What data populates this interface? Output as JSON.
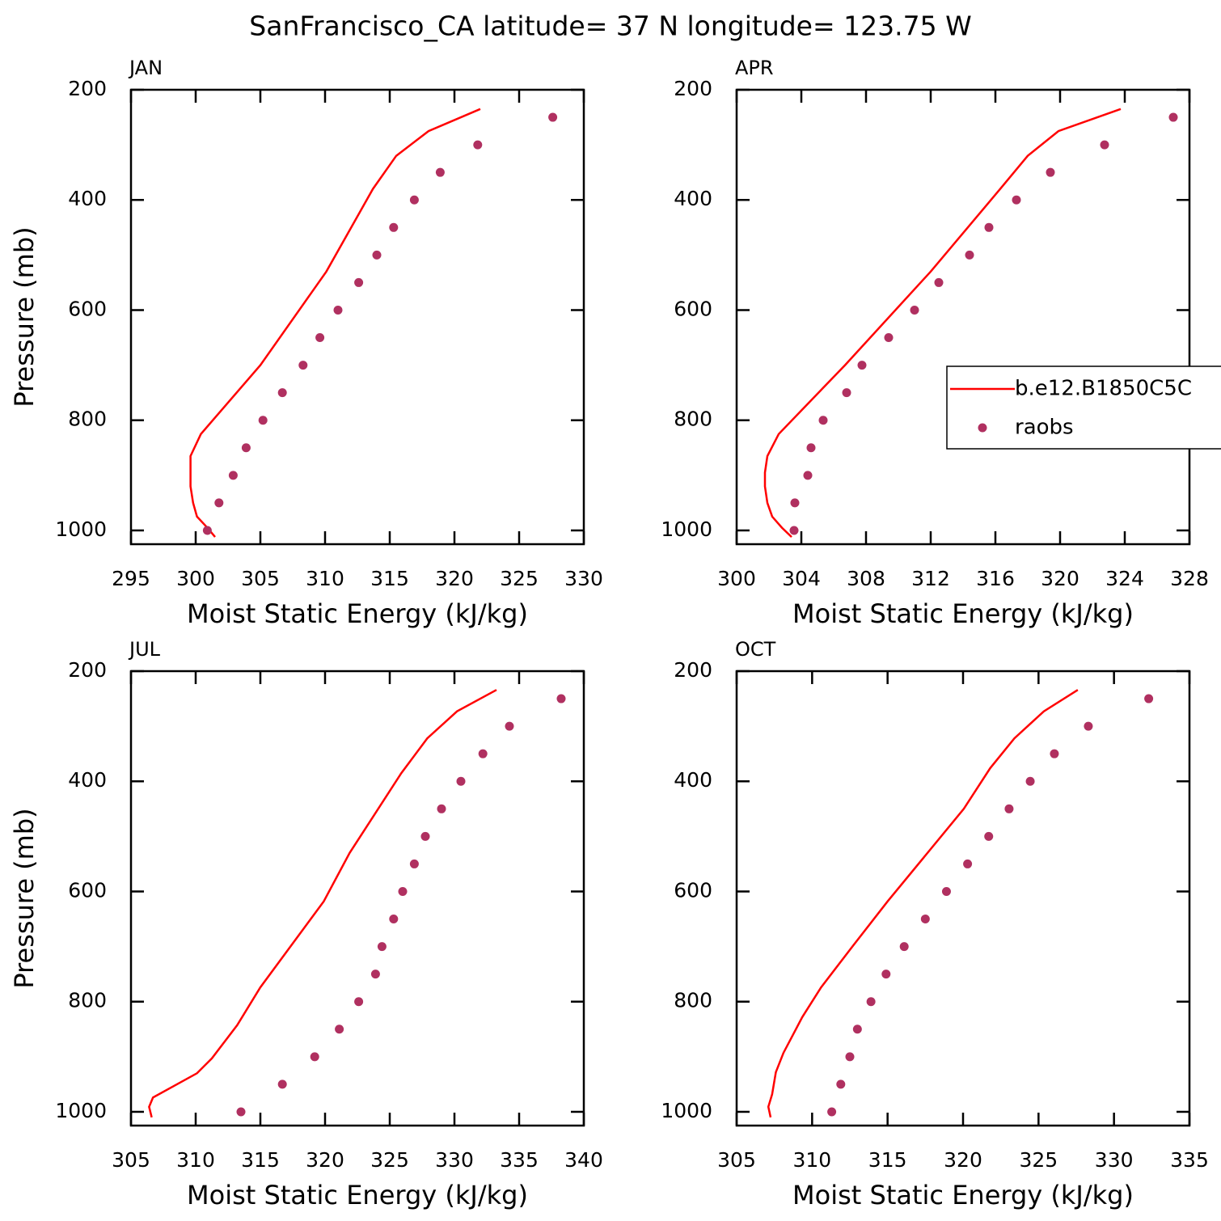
{
  "title": "SanFrancisco_CA  latitude= 37 N longitude= 123.75 W",
  "chart_data": [
    {
      "type": "line",
      "title": "JAN",
      "xlabel": "Moist Static Energy (kJ/kg)",
      "ylabel": "Pressure (mb)",
      "xlim": [
        295,
        330
      ],
      "xticks": [
        295,
        300,
        305,
        310,
        315,
        320,
        325,
        330
      ],
      "ylim": [
        1025,
        200
      ],
      "yticks": [
        200,
        400,
        600,
        800,
        1000
      ],
      "series": [
        {
          "color": "#ff0000",
          "style": "line",
          "x": [
            301.5,
            300.9,
            300.1,
            299.8,
            299.6,
            299.6,
            299.6,
            300.4,
            305.0,
            310.1,
            313.7,
            315.5,
            318.0,
            322.0
          ],
          "y": [
            1012,
            995,
            975,
            950,
            920,
            895,
            865,
            825,
            700,
            530,
            380,
            320,
            275,
            235
          ]
        },
        {
          "color": "#b03060",
          "style": "markers",
          "x": [
            300.9,
            301.8,
            302.9,
            303.9,
            305.2,
            306.7,
            308.3,
            309.6,
            311.0,
            312.6,
            314.0,
            315.3,
            316.9,
            318.9,
            321.8,
            327.6
          ],
          "y": [
            1000,
            950,
            900,
            850,
            800,
            750,
            700,
            650,
            600,
            550,
            500,
            450,
            400,
            350,
            300,
            250
          ]
        }
      ]
    },
    {
      "type": "line",
      "title": "APR",
      "xlabel": "Moist Static Energy (kJ/kg)",
      "xlim": [
        300,
        328
      ],
      "xticks": [
        300,
        304,
        308,
        312,
        316,
        320,
        324,
        328
      ],
      "ylim": [
        1025,
        200
      ],
      "yticks": [
        200,
        400,
        600,
        800,
        1000
      ],
      "legend": "right",
      "series": [
        {
          "name": "b.e12.B1850C5C",
          "color": "#ff0000",
          "style": "line",
          "x": [
            303.4,
            302.8,
            302.2,
            301.9,
            301.75,
            301.75,
            301.9,
            302.6,
            306.7,
            312.0,
            316.3,
            318.0,
            319.9,
            323.75
          ],
          "y": [
            1012,
            995,
            975,
            950,
            920,
            895,
            865,
            825,
            700,
            530,
            380,
            320,
            275,
            235
          ]
        },
        {
          "name": "raobs",
          "color": "#b03060",
          "style": "markers",
          "x": [
            303.55,
            303.6,
            304.4,
            304.6,
            305.35,
            306.8,
            307.75,
            309.4,
            311.0,
            312.5,
            314.4,
            315.6,
            317.3,
            319.4,
            322.75,
            327.0
          ],
          "y": [
            1000,
            950,
            900,
            850,
            800,
            750,
            700,
            650,
            600,
            550,
            500,
            450,
            400,
            350,
            300,
            250
          ]
        }
      ]
    },
    {
      "type": "line",
      "title": "JUL",
      "xlabel": "Moist Static Energy (kJ/kg)",
      "ylabel": "Pressure (mb)",
      "xlim": [
        305,
        340
      ],
      "xticks": [
        305,
        310,
        315,
        320,
        325,
        330,
        335,
        340
      ],
      "ylim": [
        1025,
        200
      ],
      "yticks": [
        200,
        400,
        600,
        800,
        1000
      ],
      "series": [
        {
          "color": "#ff0000",
          "style": "line",
          "x": [
            306.6,
            306.4,
            306.7,
            310.1,
            311.25,
            313.2,
            315.0,
            319.9,
            321.9,
            325.9,
            327.9,
            330.2,
            333.25
          ],
          "y": [
            1010,
            991,
            974,
            930,
            903,
            843,
            774,
            618,
            530,
            385,
            322,
            273,
            234
          ]
        },
        {
          "color": "#b03060",
          "style": "markers",
          "x": [
            313.5,
            316.7,
            319.2,
            321.1,
            322.6,
            323.9,
            324.4,
            325.3,
            326.0,
            326.9,
            327.75,
            329.0,
            330.5,
            332.2,
            334.25,
            338.25
          ],
          "y": [
            1000,
            950,
            900,
            850,
            800,
            750,
            700,
            650,
            600,
            550,
            500,
            450,
            400,
            350,
            300,
            250
          ]
        }
      ]
    },
    {
      "type": "line",
      "title": "OCT",
      "xlabel": "Moist Static Energy (kJ/kg)",
      "xlim": [
        305,
        335
      ],
      "xticks": [
        305,
        310,
        315,
        320,
        325,
        330,
        335
      ],
      "ylim": [
        1025,
        200
      ],
      "yticks": [
        200,
        400,
        600,
        800,
        1000
      ],
      "series": [
        {
          "color": "#ff0000",
          "style": "line",
          "x": [
            307.25,
            307.1,
            307.35,
            307.6,
            308.1,
            309.35,
            310.6,
            312.7,
            315.0,
            320.05,
            321.8,
            323.4,
            325.35,
            327.6
          ],
          "y": [
            1010,
            991,
            968,
            928,
            893,
            828,
            774,
            699,
            618,
            450,
            376,
            322,
            273,
            234
          ]
        },
        {
          "color": "#b03060",
          "style": "markers",
          "x": [
            311.3,
            311.9,
            312.5,
            313.0,
            313.9,
            314.9,
            316.1,
            317.5,
            318.9,
            320.3,
            321.7,
            323.05,
            324.45,
            326.05,
            328.3,
            332.3
          ],
          "y": [
            1000,
            950,
            900,
            850,
            800,
            750,
            700,
            650,
            600,
            550,
            500,
            450,
            400,
            350,
            300,
            250
          ]
        }
      ]
    }
  ]
}
